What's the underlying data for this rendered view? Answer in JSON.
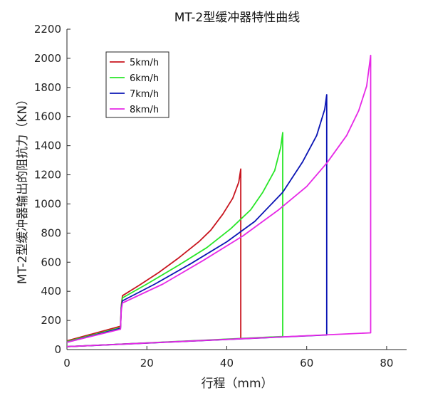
{
  "chart_data": {
    "type": "line",
    "title": "MT-2型缓冲器特性曲线",
    "xlabel": "行程（mm）",
    "ylabel": "MT-2型缓冲器输出的阻抗力（KN）",
    "xlim": [
      0,
      85
    ],
    "ylim": [
      0,
      2200
    ],
    "xticks": [
      0,
      20,
      40,
      60,
      80
    ],
    "yticks": [
      0,
      200,
      400,
      600,
      800,
      1000,
      1200,
      1400,
      1600,
      1800,
      2000,
      2200
    ],
    "grid": false,
    "legend_position": "top-left",
    "series": [
      {
        "name": "5km/h",
        "color": "#c8141e",
        "points": [
          [
            0,
            60
          ],
          [
            13.4,
            160
          ],
          [
            13.6,
            300
          ],
          [
            13.9,
            370
          ],
          [
            18,
            440
          ],
          [
            23,
            530
          ],
          [
            28,
            630
          ],
          [
            33,
            740
          ],
          [
            36,
            820
          ],
          [
            39,
            930
          ],
          [
            41.5,
            1040
          ],
          [
            43,
            1150
          ],
          [
            43.5,
            1240
          ],
          [
            43.5,
            75
          ],
          [
            0,
            20
          ]
        ]
      },
      {
        "name": "6km/h",
        "color": "#28e628",
        "points": [
          [
            0,
            55
          ],
          [
            13.4,
            150
          ],
          [
            13.6,
            290
          ],
          [
            13.9,
            355
          ],
          [
            20,
            450
          ],
          [
            28,
            580
          ],
          [
            35,
            700
          ],
          [
            41,
            830
          ],
          [
            46,
            960
          ],
          [
            49,
            1080
          ],
          [
            52,
            1230
          ],
          [
            53.5,
            1390
          ],
          [
            54,
            1490
          ],
          [
            54,
            90
          ],
          [
            0,
            20
          ]
        ]
      },
      {
        "name": "7km/h",
        "color": "#0a14b4",
        "points": [
          [
            0,
            50
          ],
          [
            13.4,
            145
          ],
          [
            13.6,
            280
          ],
          [
            13.9,
            335
          ],
          [
            22,
            450
          ],
          [
            31,
            590
          ],
          [
            40,
            740
          ],
          [
            47,
            880
          ],
          [
            54,
            1080
          ],
          [
            59,
            1290
          ],
          [
            62.5,
            1470
          ],
          [
            64.5,
            1650
          ],
          [
            65,
            1750
          ],
          [
            65,
            100
          ],
          [
            0,
            20
          ]
        ]
      },
      {
        "name": "8km/h",
        "color": "#e628e6",
        "points": [
          [
            0,
            50
          ],
          [
            13.4,
            140
          ],
          [
            13.6,
            270
          ],
          [
            13.9,
            320
          ],
          [
            24,
            450
          ],
          [
            34,
            610
          ],
          [
            44,
            780
          ],
          [
            53,
            960
          ],
          [
            60,
            1120
          ],
          [
            65,
            1280
          ],
          [
            70,
            1470
          ],
          [
            73,
            1640
          ],
          [
            75,
            1810
          ],
          [
            76,
            2020
          ],
          [
            76,
            115
          ],
          [
            0,
            20
          ]
        ]
      }
    ]
  }
}
